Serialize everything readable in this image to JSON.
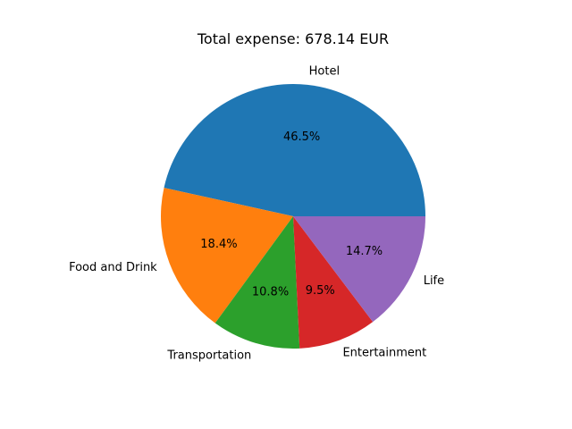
{
  "chart_data": {
    "type": "pie",
    "title": "Total expense:  678.14 EUR",
    "categories": [
      "Hotel",
      "Food and Drink",
      "Transportation",
      "Entertainment",
      "Life"
    ],
    "values": [
      46.5,
      18.4,
      10.8,
      9.5,
      14.7
    ],
    "value_labels": [
      "46.5%",
      "18.4%",
      "10.8%",
      "9.5%",
      "14.7%"
    ],
    "colors": [
      "#1f77b4",
      "#ff7f0e",
      "#2ca02c",
      "#d62728",
      "#9467bd"
    ],
    "start_angle_deg": 0,
    "direction": "counterclockwise",
    "legend": "none"
  }
}
